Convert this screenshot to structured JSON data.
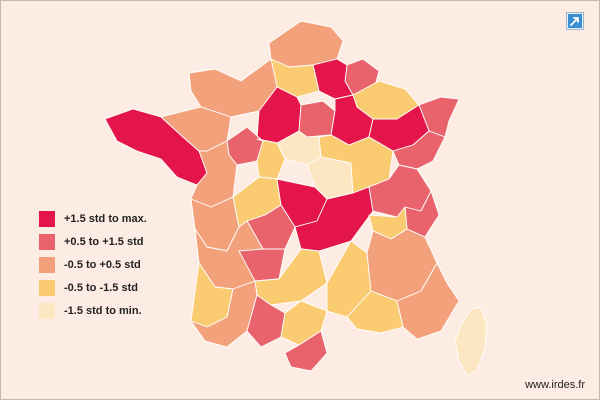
{
  "legend": {
    "classes": [
      {
        "label": "+1.5 std to max.",
        "color": "#e4154b"
      },
      {
        "label": "+0.5 to +1.5 std",
        "color": "#e8636b"
      },
      {
        "label": "-0.5 to +0.5 std",
        "color": "#f3a17b"
      },
      {
        "label": "-0.5 to -1.5 std",
        "color": "#fbcb72"
      },
      {
        "label": "-1.5 std to min.",
        "color": "#fde6c2"
      }
    ]
  },
  "map": {
    "background": "#fdece4",
    "border": "#ffffff",
    "regions": [
      {
        "name": "north",
        "class": 2
      },
      {
        "name": "nord-east",
        "class": 1
      },
      {
        "name": "ardennes",
        "class": 0
      },
      {
        "name": "aisne-marne",
        "class": 3
      },
      {
        "name": "normandy",
        "class": 2
      },
      {
        "name": "brittany-west",
        "class": 0
      },
      {
        "name": "brittany-east",
        "class": 2
      },
      {
        "name": "ile-de-france",
        "class": 4
      },
      {
        "name": "aube",
        "class": 0
      },
      {
        "name": "champagne",
        "class": 1
      },
      {
        "name": "lorraine",
        "class": 3
      },
      {
        "name": "alsace",
        "class": 1
      },
      {
        "name": "vosges",
        "class": 0
      },
      {
        "name": "sarthe",
        "class": 1
      },
      {
        "name": "pays-loire",
        "class": 2
      },
      {
        "name": "loiret",
        "class": 3
      },
      {
        "name": "cher",
        "class": 4
      },
      {
        "name": "bourgogne",
        "class": 3
      },
      {
        "name": "doubs",
        "class": 0
      },
      {
        "name": "franche-comte",
        "class": 1
      },
      {
        "name": "vendee",
        "class": 2
      },
      {
        "name": "poitou",
        "class": 3
      },
      {
        "name": "limousin",
        "class": 0
      },
      {
        "name": "auvergne",
        "class": 1
      },
      {
        "name": "puy-de-dome",
        "class": 0
      },
      {
        "name": "rhone-alpes",
        "class": 1
      },
      {
        "name": "savoie",
        "class": 1
      },
      {
        "name": "ain",
        "class": 3
      },
      {
        "name": "aquitaine",
        "class": 2
      },
      {
        "name": "landes",
        "class": 3
      },
      {
        "name": "dordogne",
        "class": 1
      },
      {
        "name": "lot",
        "class": 3
      },
      {
        "name": "pyrenees",
        "class": 2
      },
      {
        "name": "haute-garonne",
        "class": 1
      },
      {
        "name": "aude",
        "class": 3
      },
      {
        "name": "pyrenees-orientales",
        "class": 1
      },
      {
        "name": "gard",
        "class": 3
      },
      {
        "name": "provence",
        "class": 2
      },
      {
        "name": "var",
        "class": 3
      },
      {
        "name": "alpes",
        "class": 2
      },
      {
        "name": "corsica",
        "class": 4
      }
    ]
  },
  "credit": "www.irdes.fr",
  "icons": {
    "expand": "expand-arrow-icon"
  }
}
